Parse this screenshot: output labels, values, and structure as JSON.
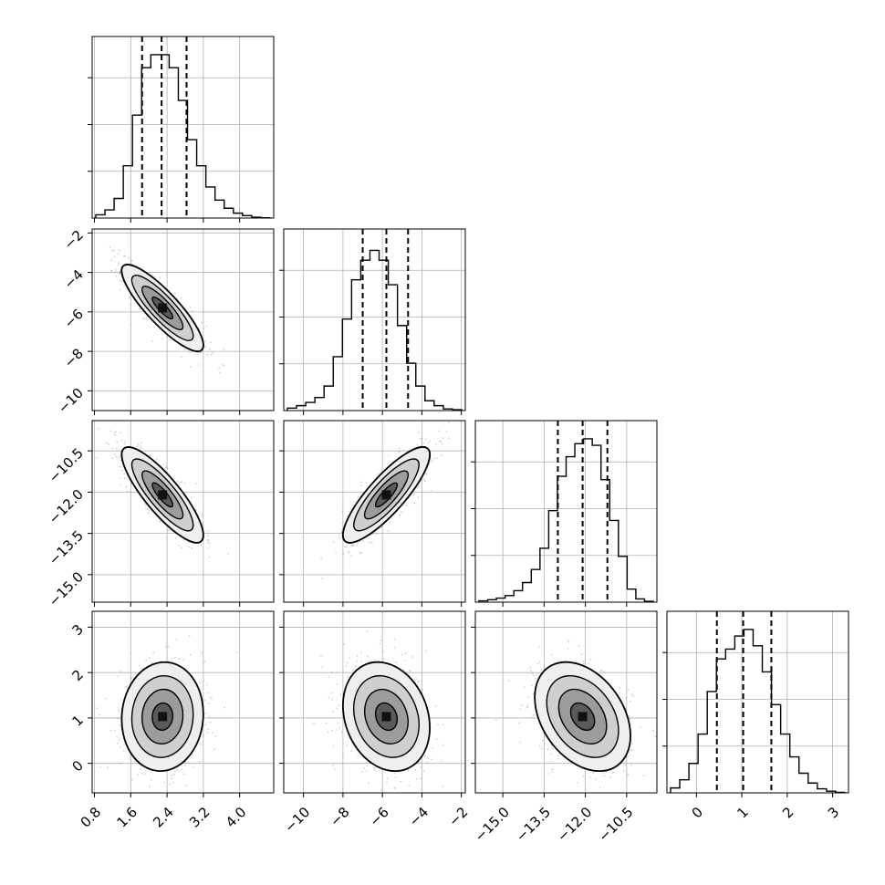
{
  "chart_data": {
    "type": "corner",
    "title": "",
    "params": [
      {
        "label": "",
        "range": [
          0.75,
          4.75
        ],
        "ticks": [
          "0.8",
          "1.6",
          "2.4",
          "3.2",
          "4.0"
        ],
        "tick_values": [
          0.8,
          1.6,
          2.4,
          3.2,
          4.0
        ],
        "quantiles": [
          1.85,
          2.28,
          2.83
        ]
      },
      {
        "label": "",
        "range": [
          -11,
          -1.8
        ],
        "ticks": [
          "−10",
          "−8",
          "−6",
          "−4",
          "−2"
        ],
        "tick_values": [
          -10,
          -8,
          -6,
          -4,
          -2
        ],
        "quantiles": [
          -7.0,
          -5.8,
          -4.7
        ]
      },
      {
        "label": "",
        "range": [
          -16.0,
          -9.4
        ],
        "ticks": [
          "−15.0",
          "−13.5",
          "−12.0",
          "−10.5"
        ],
        "tick_values": [
          -15.0,
          -13.5,
          -12.0,
          -10.5
        ],
        "quantiles": [
          -13.0,
          -12.1,
          -11.2
        ]
      },
      {
        "label": "",
        "range": [
          -0.65,
          3.35
        ],
        "ticks": [
          "0",
          "1",
          "2",
          "3"
        ],
        "tick_values": [
          0,
          1,
          2,
          3
        ],
        "quantiles": [
          0.45,
          1.03,
          1.65
        ]
      }
    ],
    "histograms": [
      [
        0.02,
        0.05,
        0.12,
        0.32,
        0.63,
        0.92,
        1.0,
        1.0,
        0.92,
        0.72,
        0.48,
        0.32,
        0.19,
        0.11,
        0.06,
        0.03,
        0.015,
        0.005,
        0.002
      ],
      [
        0.015,
        0.03,
        0.05,
        0.08,
        0.15,
        0.33,
        0.56,
        0.8,
        0.92,
        0.98,
        0.92,
        0.77,
        0.52,
        0.29,
        0.15,
        0.06,
        0.03,
        0.01,
        0.005
      ],
      [
        0.008,
        0.015,
        0.025,
        0.04,
        0.07,
        0.12,
        0.2,
        0.33,
        0.56,
        0.77,
        0.89,
        0.97,
        1.0,
        0.96,
        0.75,
        0.5,
        0.28,
        0.08,
        0.02,
        0.005
      ],
      [
        0.03,
        0.08,
        0.18,
        0.36,
        0.62,
        0.82,
        0.88,
        0.96,
        1.0,
        0.9,
        0.74,
        0.54,
        0.36,
        0.22,
        0.12,
        0.06,
        0.025,
        0.01,
        0.003
      ]
    ],
    "correlations": [
      [
        1.0,
        -0.86,
        -0.84,
        0.05
      ],
      [
        -0.86,
        1.0,
        0.84,
        -0.2
      ],
      [
        -0.84,
        0.84,
        1.0,
        -0.35
      ],
      [
        0.05,
        -0.2,
        -0.35,
        1.0
      ]
    ],
    "sigmas": [
      0.45,
      1.1,
      0.87,
      0.6
    ],
    "means": [
      2.3,
      -5.8,
      -12.1,
      1.03
    ],
    "grid": true,
    "hist_style": "step",
    "quantile_line_style": "dashed",
    "contour_levels": 4,
    "scatter_color": "#9a9a9a"
  }
}
